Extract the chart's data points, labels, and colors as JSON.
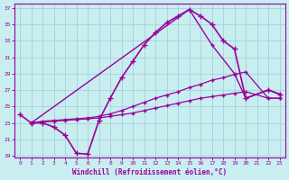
{
  "xlabel": "Windchill (Refroidissement éolien,°C)",
  "bg_color": "#c8eef0",
  "grid_color": "#9eccd8",
  "line_color": "#990099",
  "xlim_min": -0.5,
  "xlim_max": 23.5,
  "ylim_min": 18.8,
  "ylim_max": 37.5,
  "xticks": [
    0,
    1,
    2,
    3,
    4,
    5,
    6,
    7,
    8,
    9,
    10,
    11,
    12,
    13,
    14,
    15,
    16,
    17,
    18,
    19,
    20,
    21,
    22,
    23
  ],
  "yticks": [
    19,
    21,
    23,
    25,
    27,
    29,
    31,
    33,
    35,
    37
  ],
  "line1_x": [
    0,
    1,
    2,
    3,
    4,
    5,
    6,
    7,
    8,
    9,
    10,
    11,
    12,
    13,
    14,
    15,
    16,
    17,
    18,
    19,
    20,
    22,
    23
  ],
  "line1_y": [
    24.0,
    23.0,
    23.0,
    22.5,
    21.5,
    19.3,
    19.2,
    23.3,
    26.0,
    28.5,
    30.5,
    32.5,
    34.0,
    35.2,
    36.0,
    36.8,
    36.0,
    35.0,
    33.0,
    32.0,
    26.0,
    27.0,
    26.5
  ],
  "line2_x": [
    1,
    15,
    17,
    19,
    20,
    22,
    23
  ],
  "line2_y": [
    23.0,
    36.8,
    32.5,
    29.0,
    26.0,
    27.0,
    26.5
  ],
  "line3_x": [
    1,
    2,
    3,
    4,
    5,
    6,
    7,
    8,
    9,
    10,
    11,
    12,
    13,
    14,
    15,
    16,
    17,
    18,
    19,
    20,
    22,
    23
  ],
  "line3_y": [
    23.0,
    23.2,
    23.3,
    23.4,
    23.5,
    23.6,
    23.8,
    24.1,
    24.5,
    25.0,
    25.5,
    26.0,
    26.4,
    26.8,
    27.3,
    27.7,
    28.2,
    28.5,
    28.9,
    29.2,
    26.0,
    26.0
  ],
  "line4_x": [
    1,
    2,
    3,
    4,
    5,
    6,
    7,
    8,
    9,
    10,
    11,
    12,
    13,
    14,
    15,
    16,
    17,
    18,
    19,
    20,
    22,
    23
  ],
  "line4_y": [
    23.0,
    23.1,
    23.2,
    23.3,
    23.4,
    23.5,
    23.6,
    23.8,
    24.0,
    24.2,
    24.5,
    24.8,
    25.1,
    25.4,
    25.7,
    26.0,
    26.2,
    26.4,
    26.6,
    26.8,
    26.0,
    26.0
  ]
}
